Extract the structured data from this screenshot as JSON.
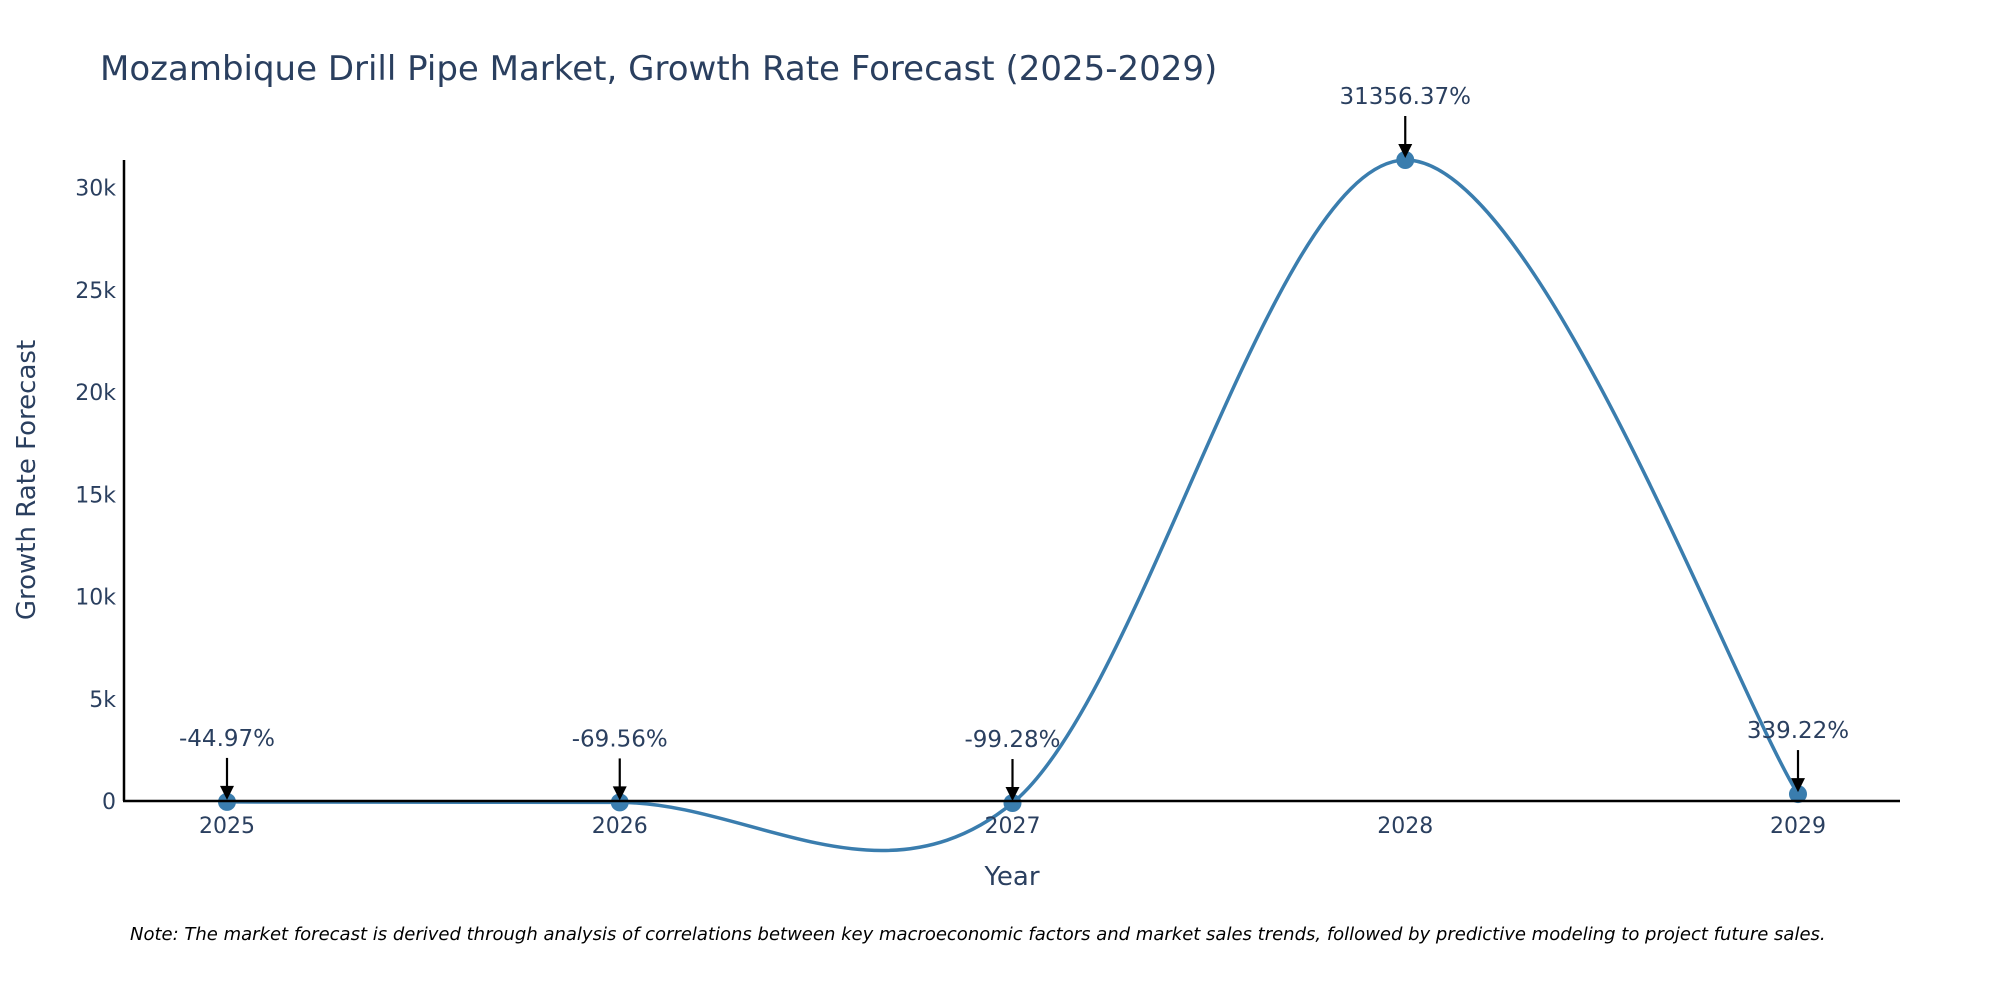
{
  "chart_data": {
    "type": "line",
    "title": "Mozambique Drill Pipe Market, Growth Rate Forecast (2025-2029)",
    "xlabel": "Year",
    "ylabel": "Growth Rate Forecast",
    "categories": [
      "2025",
      "2026",
      "2027",
      "2028",
      "2029"
    ],
    "x": [
      2025,
      2026,
      2027,
      2028,
      2029
    ],
    "values": [
      -44.97,
      -69.56,
      -99.28,
      31356.37,
      339.22
    ],
    "data_labels": [
      "-44.97%",
      "-69.56%",
      "-99.28%",
      "31356.37%",
      "339.22%"
    ],
    "ylim": [
      0,
      31356.37
    ],
    "yticks": [
      0,
      5000,
      10000,
      15000,
      20000,
      25000,
      30000
    ],
    "ytick_labels": [
      "0",
      "5k",
      "10k",
      "15k",
      "20k",
      "25k",
      "30k"
    ],
    "line_color": "#3a7dae",
    "grid": false,
    "line_shape": "spline"
  },
  "note": "Note: The market forecast is derived through analysis of correlations between key macroeconomic factors and market sales trends, followed by predictive modeling to project future sales."
}
